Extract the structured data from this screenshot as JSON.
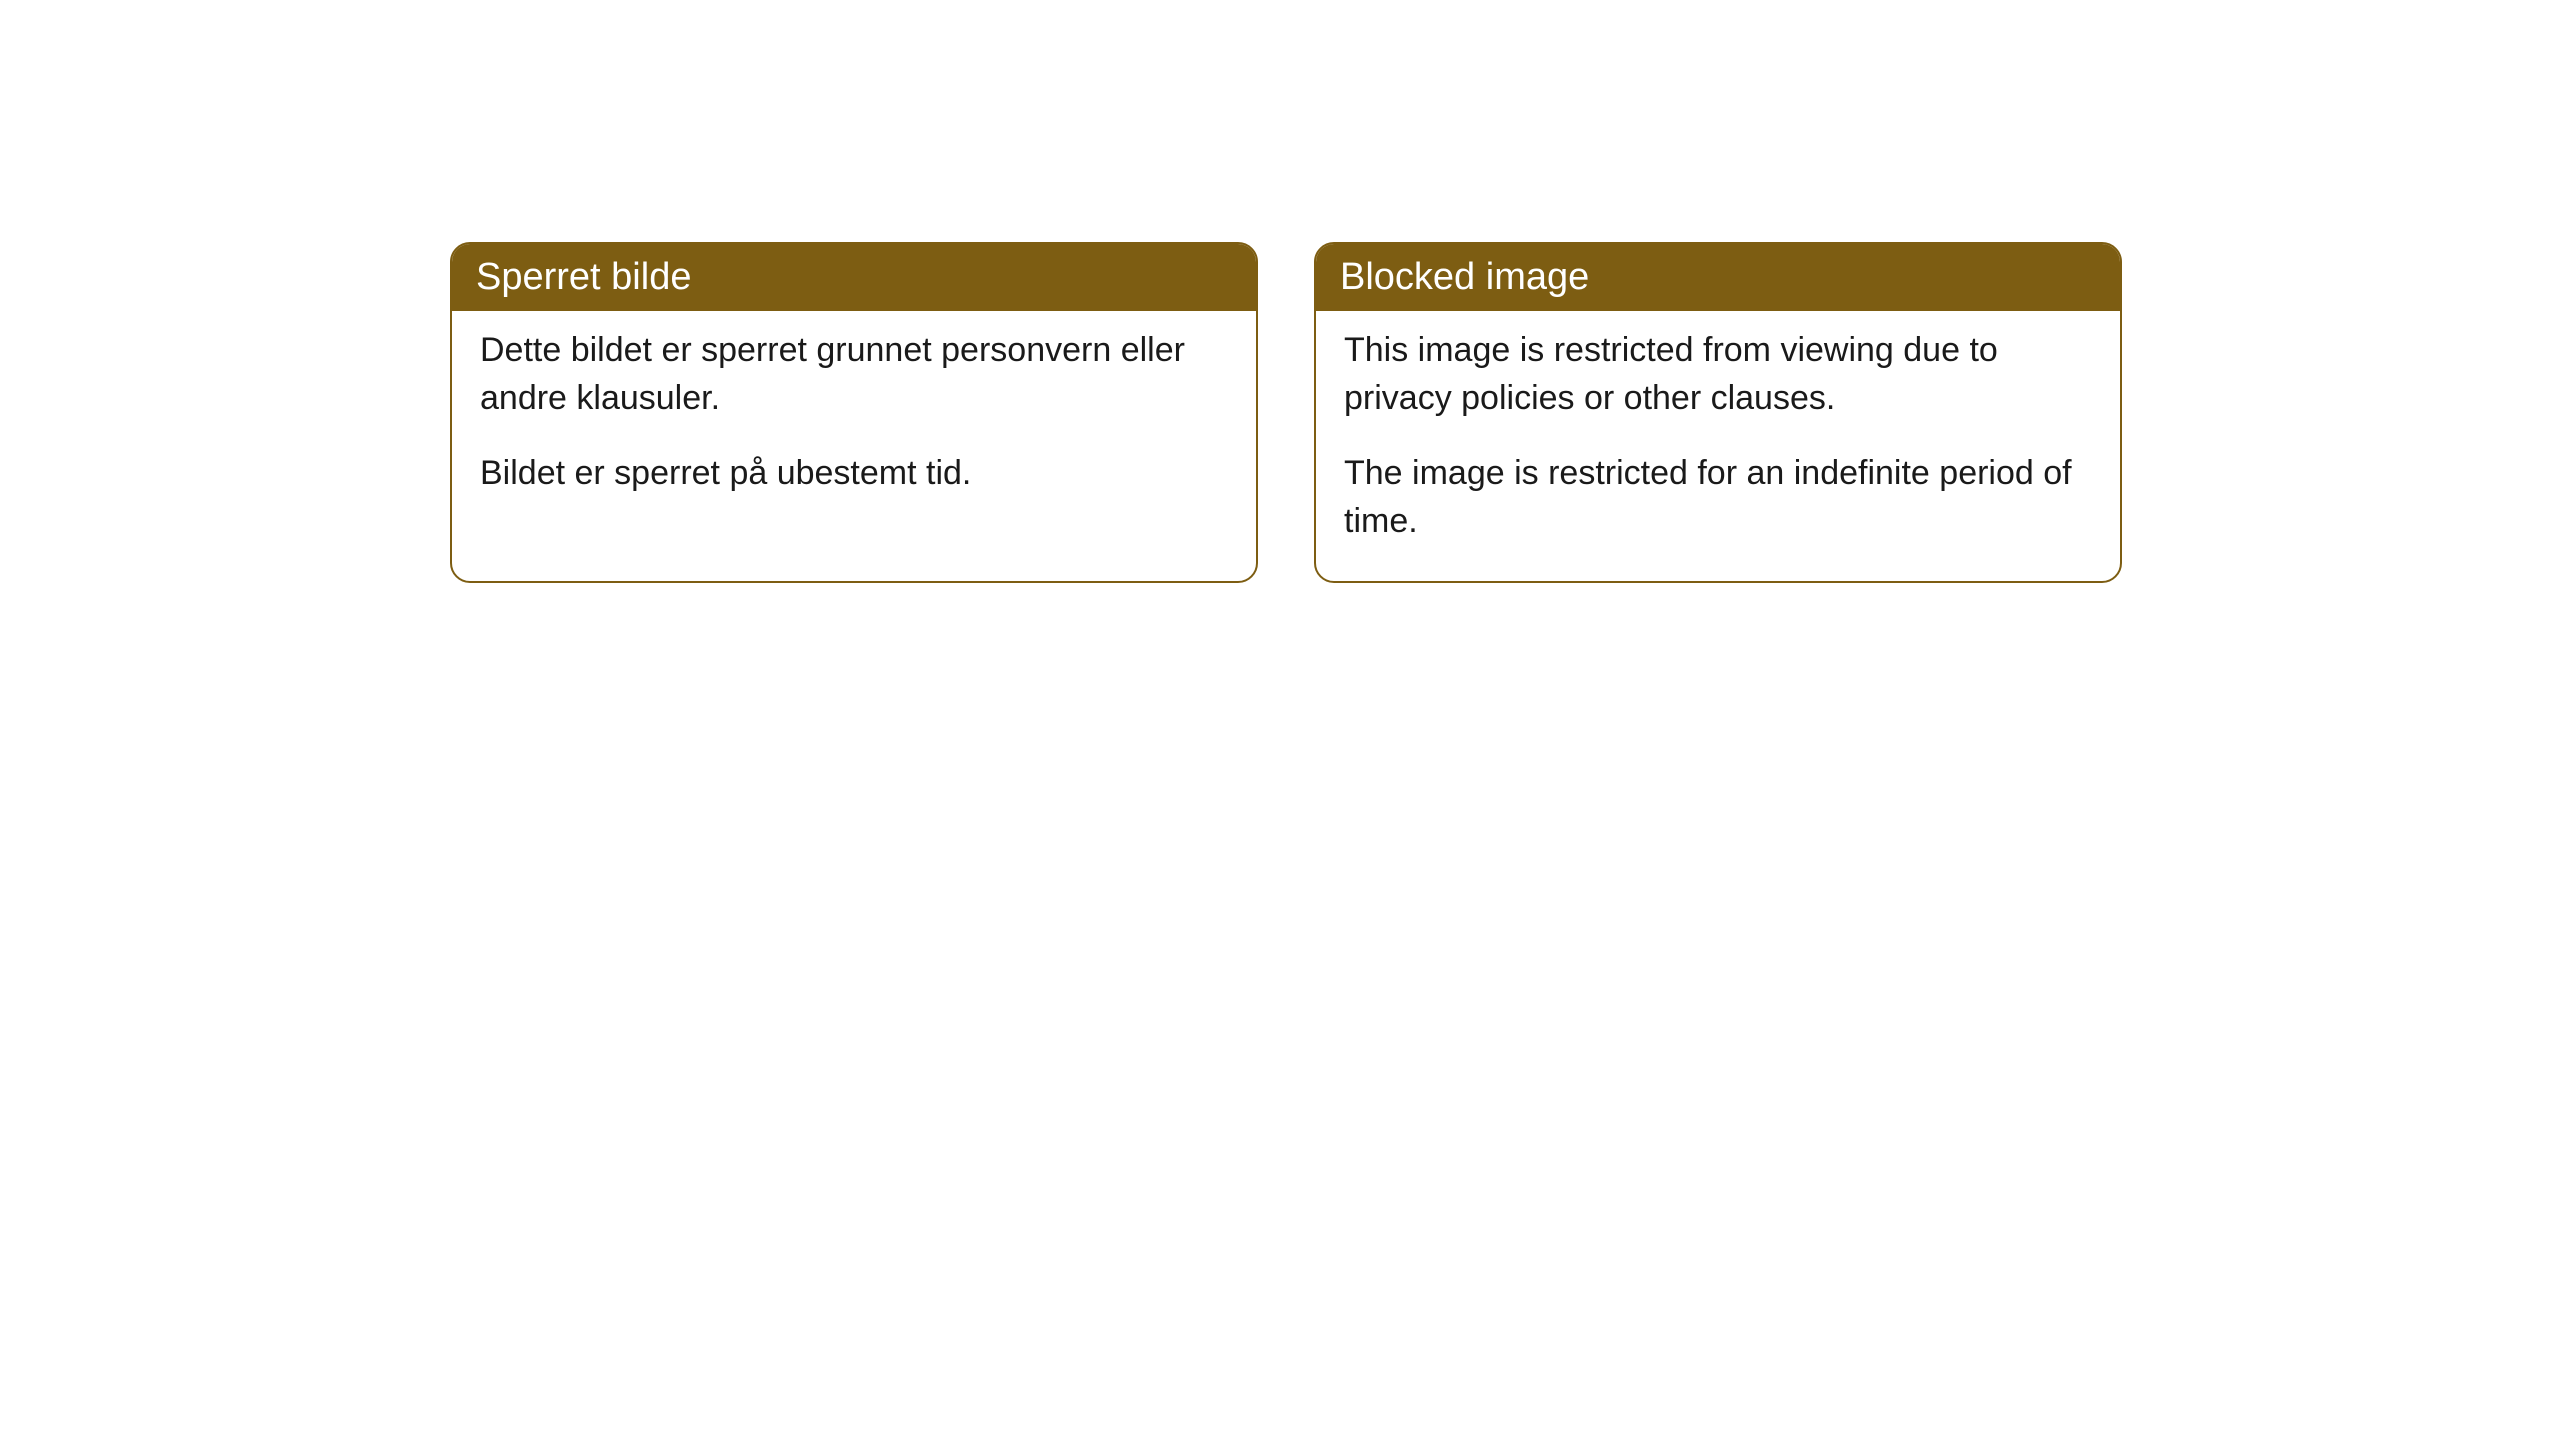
{
  "cards": [
    {
      "title": "Sperret bilde",
      "paragraph1": "Dette bildet er sperret grunnet personvern eller andre klausuler.",
      "paragraph2": "Bildet er sperret på ubestemt tid."
    },
    {
      "title": "Blocked image",
      "paragraph1": "This image is restricted from viewing due to privacy policies or other clauses.",
      "paragraph2": "The image is restricted for an indefinite period of time."
    }
  ],
  "styles": {
    "header_background": "#7d5d12",
    "header_text_color": "#ffffff",
    "border_color": "#7d5d12",
    "body_background": "#ffffff",
    "body_text_color": "#1a1a1a",
    "border_radius": 20,
    "title_fontsize": 38,
    "body_fontsize": 34
  }
}
